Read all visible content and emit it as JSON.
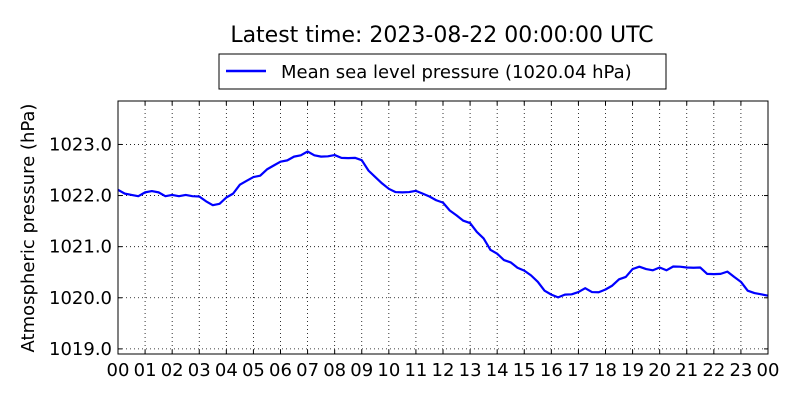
{
  "chart_data": {
    "type": "line",
    "title": "Latest time: 2023-08-22 00:00:00 UTC",
    "ylabel": "Atmospheric pressure (hPa)",
    "xlabel": "",
    "xlim": [
      0,
      24
    ],
    "ylim": [
      1018.9,
      1023.85
    ],
    "grid": true,
    "legend_position": "top-center",
    "x_ticks": [
      0,
      1,
      2,
      3,
      4,
      5,
      6,
      7,
      8,
      9,
      10,
      11,
      12,
      13,
      14,
      15,
      16,
      17,
      18,
      19,
      20,
      21,
      22,
      23,
      24
    ],
    "x_tick_labels": [
      "00",
      "01",
      "02",
      "03",
      "04",
      "05",
      "06",
      "07",
      "08",
      "09",
      "10",
      "11",
      "12",
      "13",
      "14",
      "15",
      "16",
      "17",
      "18",
      "19",
      "20",
      "21",
      "22",
      "23",
      "00"
    ],
    "y_ticks": [
      1019.0,
      1020.0,
      1021.0,
      1022.0,
      1023.0
    ],
    "y_tick_labels": [
      "1019.0",
      "1020.0",
      "1021.0",
      "1022.0",
      "1023.0"
    ],
    "series": [
      {
        "name": "Mean sea level pressure (1020.04 hPa)",
        "color": "#0000ff",
        "x": [
          0.0,
          0.25,
          0.5,
          0.75,
          1.0,
          1.25,
          1.5,
          1.75,
          2.0,
          2.25,
          2.5,
          2.75,
          3.0,
          3.25,
          3.5,
          3.75,
          4.0,
          4.25,
          4.5,
          4.75,
          5.0,
          5.25,
          5.5,
          5.75,
          6.0,
          6.25,
          6.5,
          6.75,
          7.0,
          7.25,
          7.5,
          7.75,
          8.0,
          8.25,
          8.5,
          8.75,
          9.0,
          9.25,
          9.5,
          9.75,
          10.0,
          10.25,
          10.5,
          10.75,
          11.0,
          11.25,
          11.5,
          11.75,
          12.0,
          12.25,
          12.5,
          12.75,
          13.0,
          13.25,
          13.5,
          13.75,
          14.0,
          14.25,
          14.5,
          14.75,
          15.0,
          15.25,
          15.5,
          15.75,
          16.0,
          16.25,
          16.5,
          16.75,
          17.0,
          17.25,
          17.5,
          17.75,
          18.0,
          18.25,
          18.5,
          18.75,
          19.0,
          19.25,
          19.5,
          19.75,
          20.0,
          20.25,
          20.5,
          20.75,
          21.0,
          21.25,
          21.5,
          21.75,
          22.0,
          22.25,
          22.5,
          22.75,
          23.0,
          23.25,
          23.5,
          23.75,
          24.0
        ],
        "y": [
          1022.1,
          1022.05,
          1022.0,
          1022.0,
          1022.05,
          1022.1,
          1022.05,
          1022.0,
          1022.0,
          1022.0,
          1022.0,
          1022.0,
          1021.97,
          1021.9,
          1021.8,
          1021.85,
          1021.95,
          1022.05,
          1022.2,
          1022.3,
          1022.35,
          1022.4,
          1022.5,
          1022.6,
          1022.65,
          1022.7,
          1022.75,
          1022.8,
          1022.85,
          1022.8,
          1022.75,
          1022.78,
          1022.78,
          1022.75,
          1022.72,
          1022.75,
          1022.68,
          1022.5,
          1022.35,
          1022.25,
          1022.12,
          1022.08,
          1022.05,
          1022.08,
          1022.08,
          1022.05,
          1021.97,
          1021.92,
          1021.85,
          1021.72,
          1021.6,
          1021.52,
          1021.45,
          1021.3,
          1021.15,
          1020.95,
          1020.85,
          1020.75,
          1020.68,
          1020.6,
          1020.52,
          1020.45,
          1020.3,
          1020.15,
          1020.05,
          1020.02,
          1020.05,
          1020.08,
          1020.1,
          1020.2,
          1020.1,
          1020.12,
          1020.15,
          1020.25,
          1020.35,
          1020.42,
          1020.55,
          1020.62,
          1020.55,
          1020.55,
          1020.58,
          1020.55,
          1020.6,
          1020.62,
          1020.58,
          1020.6,
          1020.58,
          1020.48,
          1020.45,
          1020.48,
          1020.5,
          1020.42,
          1020.3,
          1020.15,
          1020.08,
          1020.08,
          1020.04
        ]
      }
    ]
  }
}
